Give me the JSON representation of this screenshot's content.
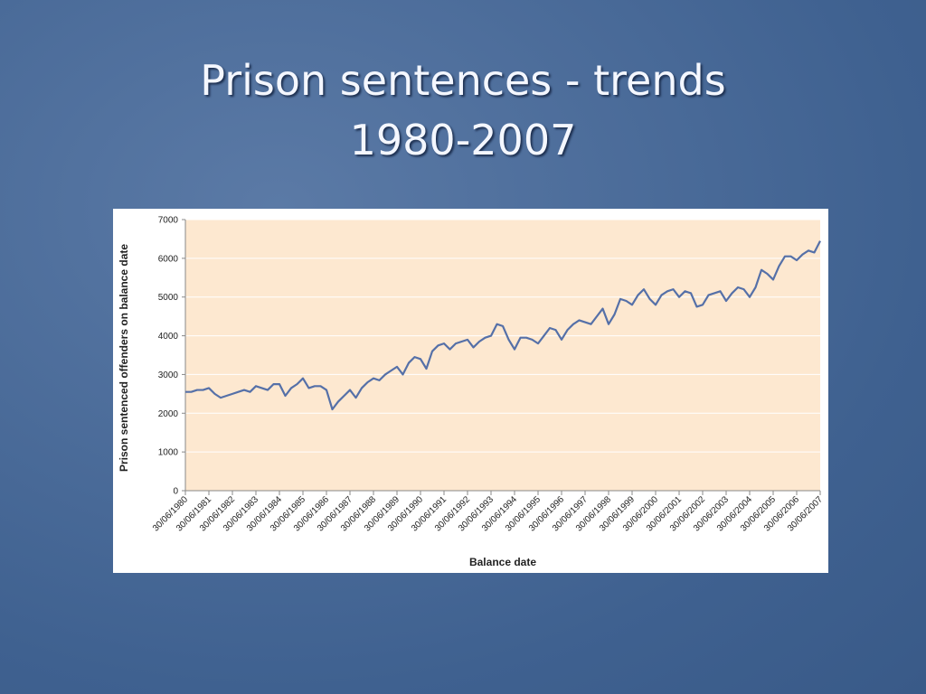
{
  "chart_data": {
    "type": "line",
    "title": "Prison sentences - trends 1980-2007",
    "x_label": "Balance date",
    "y_label": "Prison sentenced offenders on balance date",
    "categories": [
      "30/06/1980",
      null,
      null,
      null,
      "30/06/1981",
      null,
      null,
      null,
      "30/06/1982",
      null,
      null,
      null,
      "30/06/1983",
      null,
      null,
      null,
      "30/06/1984",
      null,
      null,
      null,
      "30/06/1985",
      null,
      null,
      null,
      "30/06/1986",
      null,
      null,
      null,
      "30/06/1987",
      null,
      null,
      null,
      "30/06/1988",
      null,
      null,
      null,
      "30/06/1989",
      null,
      null,
      null,
      "30/06/1990",
      null,
      null,
      null,
      "30/06/1991",
      null,
      null,
      null,
      "30/06/1992",
      null,
      null,
      null,
      "30/06/1993",
      null,
      null,
      null,
      "30/06/1994",
      null,
      null,
      null,
      "30/06/1995",
      null,
      null,
      null,
      "30/06/1996",
      null,
      null,
      null,
      "30/06/1997",
      null,
      null,
      null,
      "30/06/1998",
      null,
      null,
      null,
      "30/06/1999",
      null,
      null,
      null,
      "30/06/2000",
      null,
      null,
      null,
      "30/06/2001",
      null,
      null,
      null,
      "30/06/2002",
      null,
      null,
      null,
      "30/06/2003",
      null,
      null,
      null,
      "30/06/2004",
      null,
      null,
      null,
      "30/06/2005",
      null,
      null,
      null,
      "30/06/2006",
      null,
      null,
      null,
      "30/06/2007"
    ],
    "values": [
      2550,
      2550,
      2600,
      2600,
      2650,
      2500,
      2400,
      2450,
      2500,
      2550,
      2600,
      2550,
      2700,
      2650,
      2600,
      2750,
      2750,
      2450,
      2650,
      2750,
      2900,
      2650,
      2700,
      2700,
      2600,
      2100,
      2300,
      2450,
      2600,
      2400,
      2650,
      2800,
      2900,
      2850,
      3000,
      3100,
      3200,
      3000,
      3300,
      3450,
      3400,
      3150,
      3600,
      3750,
      3800,
      3650,
      3800,
      3850,
      3900,
      3700,
      3850,
      3950,
      4000,
      4300,
      4250,
      3900,
      3650,
      3950,
      3950,
      3900,
      3800,
      4000,
      4200,
      4150,
      3900,
      4150,
      4300,
      4400,
      4350,
      4300,
      4500,
      4700,
      4300,
      4550,
      4950,
      4900,
      4800,
      5050,
      5200,
      4950,
      4800,
      5050,
      5150,
      5200,
      5000,
      5150,
      5100,
      4750,
      4800,
      5050,
      5100,
      5150,
      4900,
      5100,
      5250,
      5200,
      5000,
      5250,
      5700,
      5600,
      5450,
      5800,
      6050,
      6050,
      5950,
      6100,
      6200,
      6150,
      6450
    ],
    "color": "#5570a8",
    "ylim": [
      0,
      7000
    ],
    "yticks": [
      0,
      1000,
      2000,
      3000,
      4000,
      5000,
      6000,
      7000
    ],
    "grid": true
  }
}
